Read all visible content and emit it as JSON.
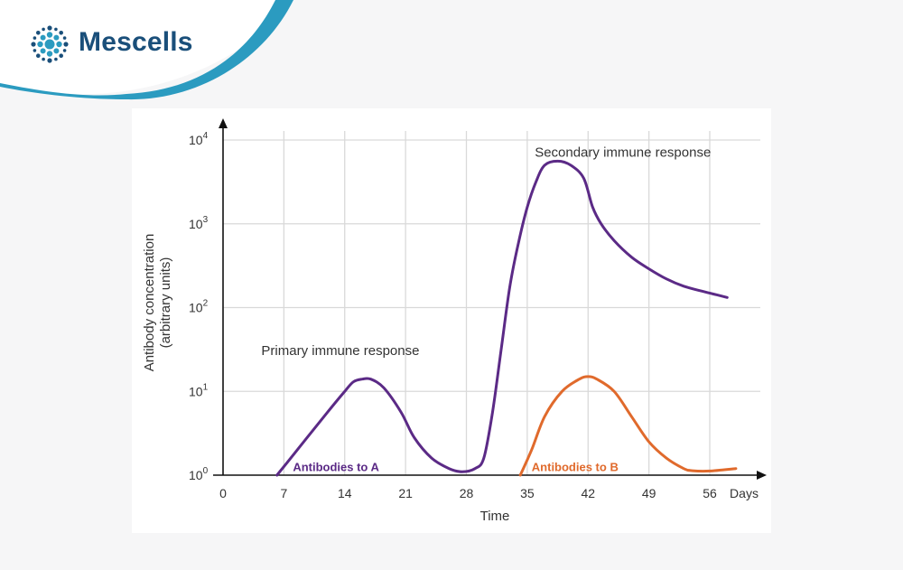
{
  "brand": {
    "name": "Mescells",
    "icon": "cell-cluster-logo-icon",
    "color": "#1a4f7a",
    "accent": "#2b9bc0"
  },
  "chart_data": {
    "type": "line",
    "xlabel": "Time",
    "ylabel_line1": "Antibody concentration",
    "ylabel_line2": "(arbitrary units)",
    "x_unit_label": "Days",
    "xlim": [
      0,
      56
    ],
    "x_ticks": [
      0,
      7,
      14,
      21,
      28,
      35,
      42,
      49,
      56
    ],
    "y_scale": "log",
    "ylim": [
      1,
      10000
    ],
    "y_ticks": [
      {
        "value": 1,
        "base": "10",
        "exp": "0"
      },
      {
        "value": 10,
        "base": "10",
        "exp": "1"
      },
      {
        "value": 100,
        "base": "10",
        "exp": "2"
      },
      {
        "value": 1000,
        "base": "10",
        "exp": "3"
      },
      {
        "value": 10000,
        "base": "10",
        "exp": "4"
      }
    ],
    "grid": true,
    "annotations": [
      {
        "text": "Primary immune response",
        "x": 13.5,
        "y": 27
      },
      {
        "text": "Secondary immune response",
        "x": 46,
        "y": 6300
      }
    ],
    "series": [
      {
        "name": "Antibodies to A",
        "color": "#5b2a86",
        "label_x": 13,
        "label_y": 1.12,
        "x": [
          6.2,
          8,
          10,
          12,
          14,
          15,
          16,
          17,
          18.5,
          20.5,
          22,
          24,
          26,
          27.5,
          29,
          30,
          31,
          32,
          33,
          34,
          35,
          36,
          37,
          38.5,
          40,
          41.5,
          42.5,
          43.5,
          45,
          47,
          49,
          51,
          53,
          55,
          58
        ],
        "y": [
          1,
          1.7,
          3.1,
          5.6,
          10,
          13,
          14,
          14,
          11,
          5.6,
          2.8,
          1.6,
          1.2,
          1.1,
          1.2,
          1.6,
          5.6,
          31.6,
          178,
          600,
          1580,
          3160,
          5000,
          5600,
          5000,
          3500,
          1600,
          1000,
          630,
          400,
          290,
          220,
          180,
          158,
          132
        ]
      },
      {
        "name": "Antibodies to B",
        "color": "#e06a2c",
        "label_x": 40.5,
        "label_y": 1.12,
        "x": [
          34.2,
          35.5,
          37,
          39,
          41,
          42,
          43,
          45,
          47,
          49,
          51,
          53,
          54,
          56,
          59
        ],
        "y": [
          1,
          2,
          5,
          10,
          14,
          15,
          14,
          10,
          5,
          2.5,
          1.6,
          1.2,
          1.13,
          1.12,
          1.2
        ]
      }
    ]
  }
}
